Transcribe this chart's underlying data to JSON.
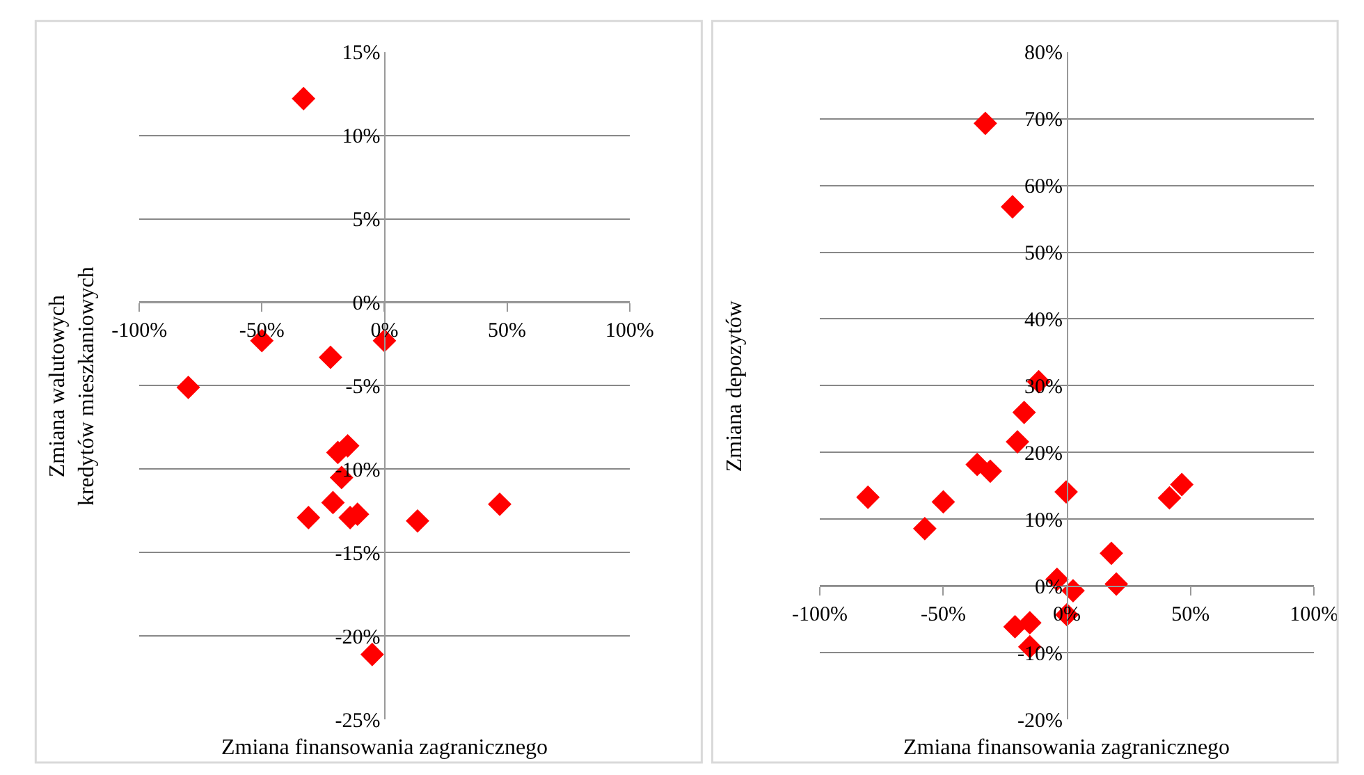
{
  "chart_data": [
    {
      "type": "scatter",
      "xlabel": "Zmiana finansowania zagranicznego",
      "ylabel": "Zmiana walutowych kredytów mieszkaniowych",
      "marker": "diamond",
      "grid": "y",
      "xlim": [
        -100,
        100
      ],
      "xticks": [
        {
          "value": -100,
          "label": "-100%"
        },
        {
          "value": -50,
          "label": "-50%"
        },
        {
          "value": 0,
          "label": "0%"
        },
        {
          "value": 50,
          "label": "50%"
        },
        {
          "value": 100,
          "label": "100%"
        }
      ],
      "ylim": [
        -25,
        15
      ],
      "yticks": [
        {
          "value": -25,
          "label": "-25%"
        },
        {
          "value": -20,
          "label": "-20%"
        },
        {
          "value": -15,
          "label": "-15%"
        },
        {
          "value": -10,
          "label": "-10%"
        },
        {
          "value": -5,
          "label": "-5%"
        },
        {
          "value": 0,
          "label": "0%"
        },
        {
          "value": 5,
          "label": "5%"
        },
        {
          "value": 10,
          "label": "10%"
        },
        {
          "value": 15,
          "label": "15%"
        }
      ],
      "series": [
        {
          "color": "#ff0000",
          "x": [
            -33,
            -50,
            0,
            -22,
            -80,
            -15,
            -19,
            -17.5,
            -21,
            -31,
            -14,
            -11,
            13.5,
            47,
            -5
          ],
          "values": [
            12.2,
            -2.3,
            -2.3,
            -3.3,
            -5.1,
            -8.6,
            -9.0,
            -10.5,
            -12.0,
            -12.9,
            -12.9,
            -12.7,
            -13.1,
            -12.1,
            -21.1
          ]
        }
      ]
    },
    {
      "type": "scatter",
      "xlabel": "Zmiana finansowania zagranicznego",
      "ylabel": "Zmiana depozytów",
      "marker": "diamond",
      "grid": "y",
      "xlim": [
        -100,
        100
      ],
      "xticks": [
        {
          "value": -100,
          "label": "-100%"
        },
        {
          "value": -50,
          "label": "-50%"
        },
        {
          "value": 0,
          "label": "0%"
        },
        {
          "value": 50,
          "label": "50%"
        },
        {
          "value": 100,
          "label": "100%"
        }
      ],
      "ylim": [
        -20,
        80
      ],
      "yticks": [
        {
          "value": -20,
          "label": "-20%"
        },
        {
          "value": -10,
          "label": "-10%"
        },
        {
          "value": 0,
          "label": "0%"
        },
        {
          "value": 10,
          "label": "10%"
        },
        {
          "value": 20,
          "label": "20%"
        },
        {
          "value": 30,
          "label": "30%"
        },
        {
          "value": 40,
          "label": "40%"
        },
        {
          "value": 50,
          "label": "50%"
        },
        {
          "value": 60,
          "label": "60%"
        },
        {
          "value": 70,
          "label": "70%"
        },
        {
          "value": 80,
          "label": "80%"
        }
      ],
      "series": [
        {
          "color": "#ff0000",
          "x": [
            -33,
            -22,
            -11.4,
            -17.3,
            -20,
            -36.3,
            -31,
            -0.3,
            -80.5,
            -50,
            -57.5,
            41.5,
            46.5,
            18,
            20,
            -4,
            2.5,
            0,
            -21,
            -15,
            -15
          ],
          "values": [
            69.3,
            56.8,
            30.6,
            26.0,
            21.6,
            18.2,
            17.2,
            14.1,
            13.3,
            12.6,
            8.6,
            13.2,
            15.2,
            4.9,
            0.3,
            1.0,
            -0.7,
            -4.3,
            -6.1,
            -5.5,
            -9.1
          ]
        }
      ]
    }
  ]
}
